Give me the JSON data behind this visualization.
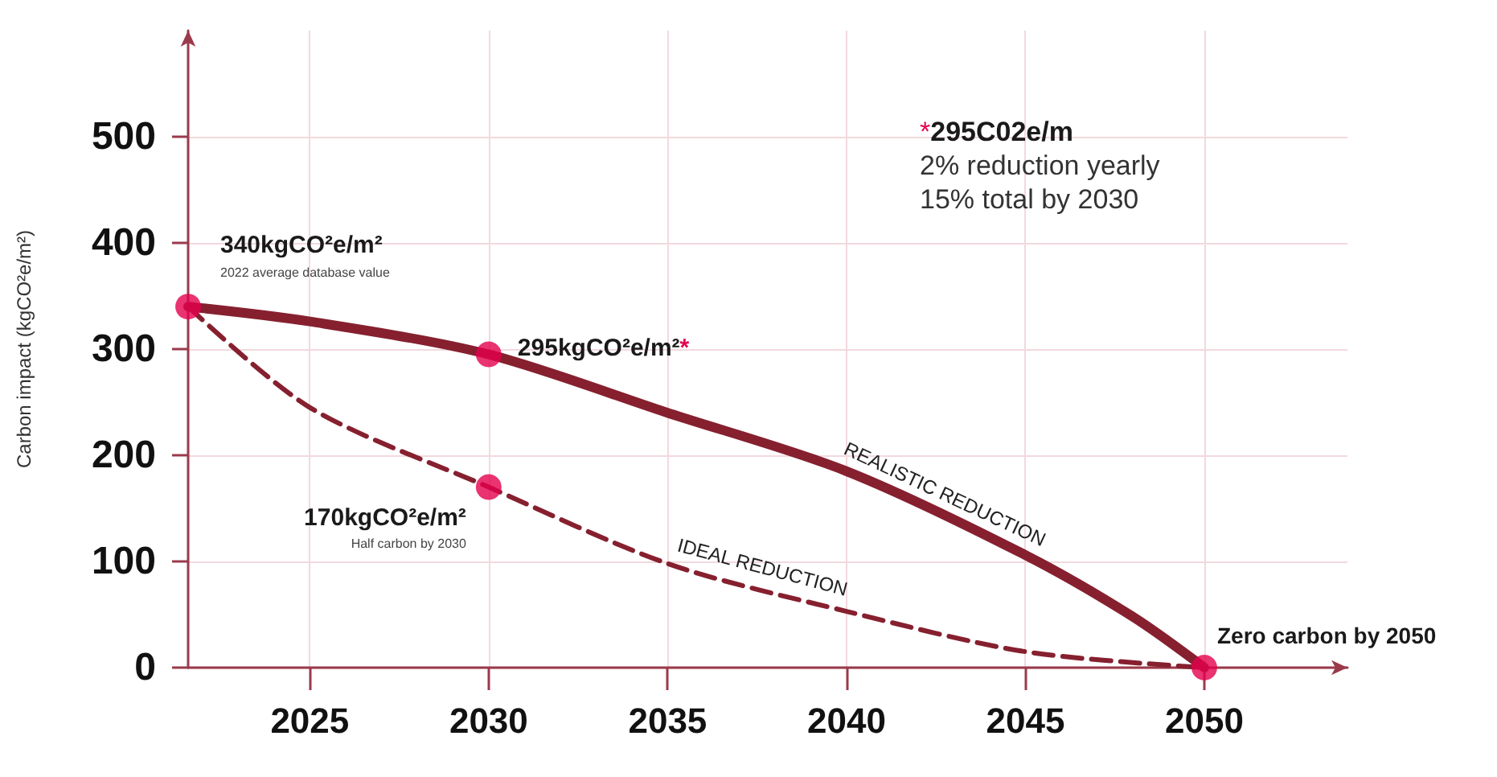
{
  "chart_data": {
    "type": "line",
    "ylabel": "Carbon impact (kgCO²e/m²)",
    "xlim": [
      2021.6,
      2054
    ],
    "xticks": [
      2025,
      2030,
      2035,
      2040,
      2045,
      2050
    ],
    "ylim": [
      0,
      600
    ],
    "yticks": [
      0,
      100,
      200,
      300,
      400,
      500
    ],
    "grid": true,
    "series": [
      {
        "name": "REALISTIC REDUCTION",
        "color": "#86202f",
        "line_style": "solid",
        "x": [
          2021.6,
          2025,
          2030,
          2035,
          2040,
          2045,
          2048,
          2050
        ],
        "values": [
          340,
          326,
          295,
          240,
          185,
          106,
          48,
          0
        ]
      },
      {
        "name": "IDEAL REDUCTION",
        "color": "#86202f",
        "line_style": "dashed",
        "x": [
          2021.6,
          2025,
          2030,
          2035,
          2040,
          2045,
          2050
        ],
        "values": [
          340,
          245,
          170,
          98,
          53,
          15,
          0
        ]
      },
      {
        "type": "scatter",
        "color": "#e5004e",
        "marker": "circle",
        "x": [
          2021.6,
          2030,
          2030,
          2050
        ],
        "values": [
          340,
          295,
          170,
          0
        ]
      }
    ],
    "annotations": [
      {
        "text": "340kgCO²e/m²",
        "x": 2021.6,
        "y": 340
      },
      "2022 average database value",
      {
        "text": "295kgCO²e/m²*",
        "x": 2030,
        "y": 295
      },
      {
        "text": "170kgCO²e/m²",
        "x": 2030,
        "y": 170
      },
      "Half carbon by 2030",
      "*295C02e/m",
      "2% reduction yearly",
      "15% total by 2030",
      {
        "text": "Zero carbon by 2050",
        "x": 2050,
        "y": 0
      }
    ]
  }
}
